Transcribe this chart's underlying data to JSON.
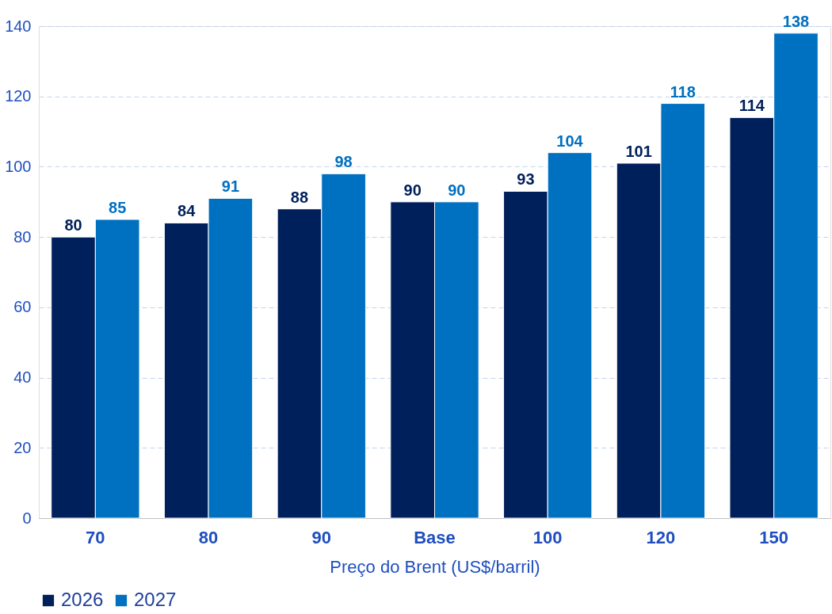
{
  "chart_data": {
    "type": "bar",
    "xlabel": "Preço do Brent (US$/barril)",
    "categories": [
      "70",
      "80",
      "90",
      "Base",
      "100",
      "120",
      "150"
    ],
    "series": [
      {
        "name": "2026",
        "color": "#00205b",
        "values": [
          80,
          84,
          88,
          90,
          93,
          101,
          114
        ]
      },
      {
        "name": "2027",
        "color": "#0070c0",
        "values": [
          85,
          91,
          98,
          90,
          104,
          118,
          138
        ]
      }
    ],
    "ylim": [
      0,
      140
    ],
    "yticks": [
      0,
      20,
      40,
      60,
      80,
      100,
      120,
      140
    ],
    "grid": "y",
    "legend": "bottom",
    "data_labels": true
  }
}
